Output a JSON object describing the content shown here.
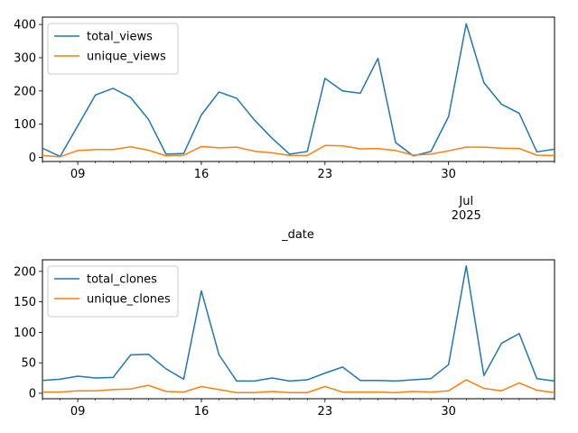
{
  "colors": {
    "blue": "#1f77b4",
    "orange": "#ff7f0e"
  },
  "chart_data": [
    {
      "type": "line",
      "x": [
        "2025-06-07",
        "2025-06-08",
        "2025-06-09",
        "2025-06-10",
        "2025-06-11",
        "2025-06-12",
        "2025-06-13",
        "2025-06-14",
        "2025-06-15",
        "2025-06-16",
        "2025-06-17",
        "2025-06-18",
        "2025-06-19",
        "2025-06-20",
        "2025-06-21",
        "2025-06-22",
        "2025-06-23",
        "2025-06-24",
        "2025-06-25",
        "2025-06-26",
        "2025-06-27",
        "2025-06-28",
        "2025-06-29",
        "2025-06-30",
        "2025-07-01",
        "2025-07-02",
        "2025-07-03",
        "2025-07-04",
        "2025-07-05",
        "2025-07-06"
      ],
      "series": [
        {
          "name": "total_views",
          "color": "#1f77b4",
          "values": [
            28,
            3,
            95,
            188,
            208,
            180,
            115,
            10,
            12,
            128,
            197,
            178,
            113,
            58,
            10,
            18,
            238,
            200,
            193,
            298,
            45,
            5,
            18,
            123,
            402,
            225,
            160,
            133,
            17,
            25
          ]
        },
        {
          "name": "unique_views",
          "color": "#ff7f0e",
          "values": [
            6,
            2,
            21,
            24,
            24,
            32,
            22,
            5,
            7,
            33,
            29,
            31,
            19,
            14,
            6,
            6,
            36,
            35,
            26,
            27,
            21,
            7,
            10,
            20,
            31,
            31,
            28,
            27,
            7,
            6
          ]
        }
      ],
      "xticks": [
        {
          "date": "2025-06-09",
          "label": "09"
        },
        {
          "date": "2025-06-16",
          "label": "16"
        },
        {
          "date": "2025-06-23",
          "label": "23"
        },
        {
          "date": "2025-06-30",
          "label": "30"
        }
      ],
      "minor_tick": {
        "date": "2025-07-01",
        "label_line1": "Jul",
        "label_line2": "2025"
      },
      "yticks": [
        0,
        100,
        200,
        300,
        400
      ],
      "ylim": [
        -12,
        422
      ],
      "xlabel": "_date",
      "legend": "upper-left"
    },
    {
      "type": "line",
      "x": [
        "2025-06-07",
        "2025-06-08",
        "2025-06-09",
        "2025-06-10",
        "2025-06-11",
        "2025-06-12",
        "2025-06-13",
        "2025-06-14",
        "2025-06-15",
        "2025-06-16",
        "2025-06-17",
        "2025-06-18",
        "2025-06-19",
        "2025-06-20",
        "2025-06-21",
        "2025-06-22",
        "2025-06-23",
        "2025-06-24",
        "2025-06-25",
        "2025-06-26",
        "2025-06-27",
        "2025-06-28",
        "2025-06-29",
        "2025-06-30",
        "2025-07-01",
        "2025-07-02",
        "2025-07-03",
        "2025-07-04",
        "2025-07-05",
        "2025-07-06"
      ],
      "series": [
        {
          "name": "total_clones",
          "color": "#1f77b4",
          "values": [
            21,
            23,
            28,
            25,
            26,
            63,
            64,
            40,
            23,
            168,
            63,
            20,
            20,
            25,
            20,
            22,
            33,
            43,
            21,
            21,
            20,
            22,
            24,
            47,
            209,
            29,
            82,
            98,
            24,
            20
          ]
        },
        {
          "name": "unique_clones",
          "color": "#ff7f0e",
          "values": [
            2,
            2,
            4,
            4,
            6,
            7,
            13,
            3,
            2,
            11,
            6,
            1,
            1,
            3,
            1,
            1,
            11,
            2,
            2,
            2,
            1,
            3,
            2,
            4,
            22,
            8,
            4,
            17,
            5,
            1
          ]
        }
      ],
      "xticks": [
        {
          "date": "2025-06-09",
          "label": "09"
        },
        {
          "date": "2025-06-16",
          "label": "16"
        },
        {
          "date": "2025-06-23",
          "label": "23"
        },
        {
          "date": "2025-06-30",
          "label": "30"
        }
      ],
      "yticks": [
        0,
        50,
        100,
        150,
        200
      ],
      "ylim": [
        -9,
        219
      ],
      "legend": "upper-left"
    }
  ]
}
